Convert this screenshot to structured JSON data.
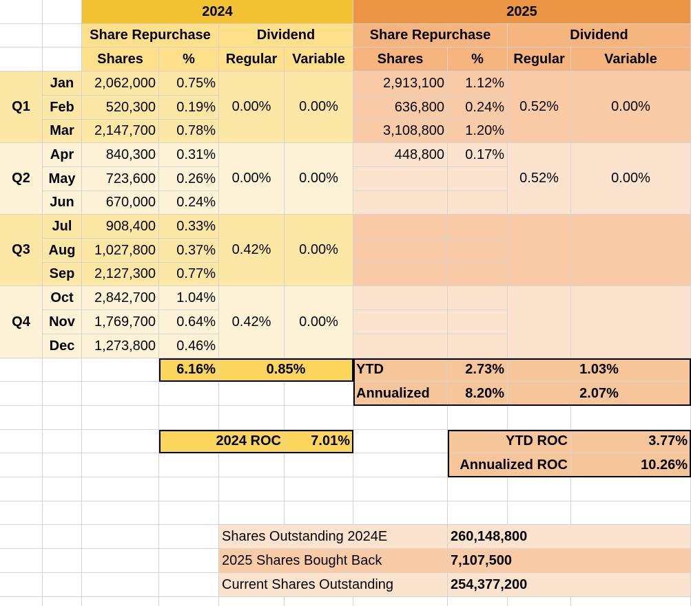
{
  "colors": {
    "y_hdr": "#f2c232",
    "y_sub": "#ffe08a",
    "y_dark": "#fde7a4",
    "y_light": "#fef3d6",
    "y_total": "#fcd55b",
    "o_hdr": "#eb9545",
    "o_sub": "#f6b57e",
    "o_dark": "#f9cca7",
    "o_light": "#fce3ce",
    "o_total": "#f6c59a",
    "grid": "#d4d4d4"
  },
  "header": {
    "year_2024": "2024",
    "year_2025": "2025",
    "share_repurchase": "Share Repurchase",
    "dividend": "Dividend",
    "shares": "Shares",
    "pct": "%",
    "regular": "Regular",
    "variable": "Variable"
  },
  "months": [
    {
      "q": "Q1",
      "m": "Jan",
      "s24": "2,062,000",
      "p24": "0.75%",
      "s25": "2,913,100",
      "p25": "1.12%"
    },
    {
      "q": "Q1",
      "m": "Feb",
      "s24": "520,300",
      "p24": "0.19%",
      "s25": "636,800",
      "p25": "0.24%"
    },
    {
      "q": "Q1",
      "m": "Mar",
      "s24": "2,147,700",
      "p24": "0.78%",
      "s25": "3,108,800",
      "p25": "1.20%"
    },
    {
      "q": "Q2",
      "m": "Apr",
      "s24": "840,300",
      "p24": "0.31%",
      "s25": "448,800",
      "p25": "0.17%"
    },
    {
      "q": "Q2",
      "m": "May",
      "s24": "723,600",
      "p24": "0.26%",
      "s25": "",
      "p25": ""
    },
    {
      "q": "Q2",
      "m": "Jun",
      "s24": "670,000",
      "p24": "0.24%",
      "s25": "",
      "p25": ""
    },
    {
      "q": "Q3",
      "m": "Jul",
      "s24": "908,400",
      "p24": "0.33%",
      "s25": "",
      "p25": ""
    },
    {
      "q": "Q3",
      "m": "Aug",
      "s24": "1,027,800",
      "p24": "0.37%",
      "s25": "",
      "p25": ""
    },
    {
      "q": "Q3",
      "m": "Sep",
      "s24": "2,127,300",
      "p24": "0.77%",
      "s25": "",
      "p25": ""
    },
    {
      "q": "Q4",
      "m": "Oct",
      "s24": "2,842,700",
      "p24": "1.04%",
      "s25": "",
      "p25": ""
    },
    {
      "q": "Q4",
      "m": "Nov",
      "s24": "1,769,700",
      "p24": "0.64%",
      "s25": "",
      "p25": ""
    },
    {
      "q": "Q4",
      "m": "Dec",
      "s24": "1,273,800",
      "p24": "0.46%",
      "s25": "",
      "p25": ""
    }
  ],
  "quarters": [
    {
      "q": "Q1",
      "reg24": "0.00%",
      "var24": "0.00%",
      "reg25": "0.52%",
      "var25": "0.00%"
    },
    {
      "q": "Q2",
      "reg24": "0.00%",
      "var24": "0.00%",
      "reg25": "0.52%",
      "var25": "0.00%"
    },
    {
      "q": "Q3",
      "reg24": "0.42%",
      "var24": "0.00%",
      "reg25": "",
      "var25": ""
    },
    {
      "q": "Q4",
      "reg24": "0.42%",
      "var24": "0.00%",
      "reg25": "",
      "var25": ""
    }
  ],
  "totals_2024": {
    "repurchase_pct": "6.16%",
    "dividend_pct": "0.85%",
    "roc_label": "2024 ROC",
    "roc": "7.01%"
  },
  "totals_2025": {
    "ytd_label": "YTD",
    "ytd_repurchase": "2.73%",
    "ytd_dividend": "1.03%",
    "annualized_label": "Annualized",
    "ann_repurchase": "8.20%",
    "ann_dividend": "2.07%",
    "ytd_roc_label": "YTD ROC",
    "ytd_roc": "3.77%",
    "ann_roc_label": "Annualized ROC",
    "ann_roc": "10.26%"
  },
  "summary": [
    {
      "label": "Shares Outstanding 2024E",
      "value": "260,148,800"
    },
    {
      "label": "2025 Shares Bought Back",
      "value": "7,107,500"
    },
    {
      "label": "Current Shares Outstanding",
      "value": "254,377,200"
    }
  ]
}
